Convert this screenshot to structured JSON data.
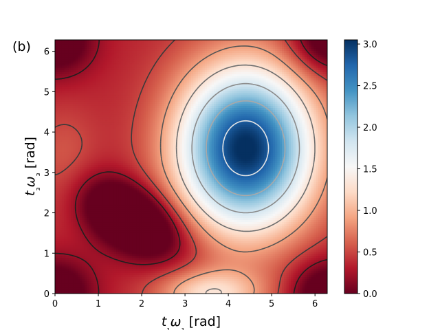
{
  "panel_label": "(b)",
  "chart_data": {
    "type": "heatmap",
    "panel_label": "(b)",
    "xlabel": "t₁ω₁ [rad]",
    "ylabel": "t₃ω₃ [rad]",
    "xlim": [
      0,
      6.283
    ],
    "ylim": [
      0,
      6.283
    ],
    "x_ticks": [
      0,
      1,
      2,
      3,
      4,
      5,
      6
    ],
    "y_ticks": [
      0,
      1,
      2,
      3,
      4,
      5,
      6
    ],
    "x_tick_labels": [
      "0",
      "1",
      "2",
      "3",
      "4",
      "5",
      "6"
    ],
    "y_tick_labels": [
      "0",
      "1",
      "2",
      "3",
      "4",
      "5",
      "6"
    ],
    "colormap": "RdBu",
    "colorbar": {
      "range": [
        0.0,
        3.05
      ],
      "ticks": [
        0.0,
        0.5,
        1.0,
        1.5,
        2.0,
        2.5,
        3.0
      ],
      "tick_labels": [
        "0.0",
        "0.5",
        "1.0",
        "1.5",
        "2.0",
        "2.5",
        "3.0"
      ]
    },
    "field_model": {
      "grid_points": 120,
      "min_points": [
        [
          1.8,
          1.8,
          0.0
        ],
        [
          0.0,
          0.0,
          0.0
        ],
        [
          6.283,
          0.0,
          0.0
        ],
        [
          0.0,
          6.283,
          0.0
        ],
        [
          6.283,
          6.283,
          0.0
        ]
      ],
      "max_point": [
        4.4,
        3.6,
        3.05
      ]
    },
    "contour_levels": [
      {
        "value": 0.2,
        "color": "#1f1f1f"
      },
      {
        "value": 0.5,
        "color": "#3a3a3a"
      },
      {
        "value": 0.9,
        "color": "#555555"
      },
      {
        "value": 1.3,
        "color": "#6e6e6e"
      },
      {
        "value": 1.8,
        "color": "#8a8a8a"
      },
      {
        "value": 2.3,
        "color": "#a9a9a9"
      },
      {
        "value": 2.8,
        "color": "#e6e6e6"
      }
    ],
    "colors": {
      "low": "#67001f",
      "mid_low": "#d6604d",
      "mid": "#f7f7f7",
      "mid_high": "#4393c3",
      "high": "#053061"
    }
  }
}
